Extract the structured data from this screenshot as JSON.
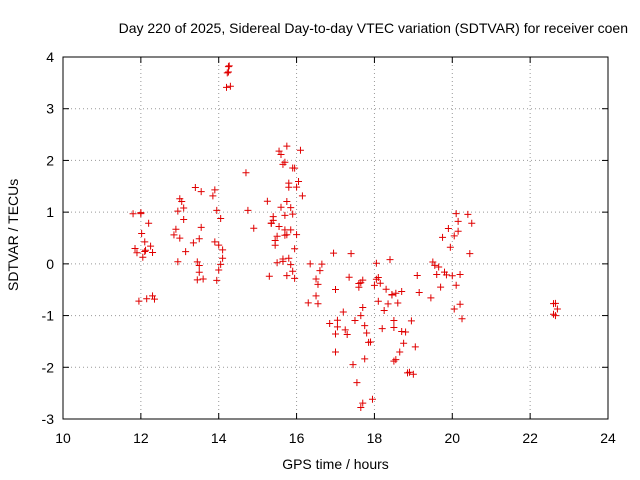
{
  "chart_data": {
    "type": "scatter",
    "title": "Day 220 of 2025, Sidereal Day-to-day VTEC variation (SDTVAR) for receiver coen",
    "xlabel": "GPS time / hours",
    "ylabel": "SDTVAR / TECUs",
    "xlim": [
      10,
      24
    ],
    "ylim": [
      -3,
      4
    ],
    "xticks": [
      10,
      12,
      14,
      16,
      18,
      20,
      22,
      24
    ],
    "yticks": [
      -3,
      -2,
      -1,
      0,
      1,
      2,
      3,
      4
    ],
    "grid": true,
    "marker": "plus",
    "color": "#e00000",
    "series": [
      {
        "name": "SDTVAR",
        "x": [
          11.8,
          11.85,
          11.9,
          11.95,
          12.0,
          12.0,
          12.02,
          12.05,
          12.1,
          12.1,
          12.12,
          12.15,
          12.2,
          12.25,
          12.3,
          12.3,
          12.35,
          12.85,
          12.9,
          12.95,
          13.0,
          13.05,
          13.1,
          13.1,
          13.15,
          12.95,
          13.0,
          13.35,
          13.4,
          13.45,
          13.5,
          13.55,
          13.5,
          13.55,
          13.6,
          13.45,
          13.5,
          13.85,
          13.9,
          13.95,
          14.0,
          14.05,
          13.9,
          13.95,
          14.0,
          14.05,
          14.1,
          14.1,
          14.2,
          14.22,
          14.25,
          14.27,
          14.3,
          14.25,
          14.7,
          14.75,
          14.9,
          15.25,
          15.3,
          15.35,
          15.4,
          15.45,
          15.5,
          15.55,
          15.6,
          15.35,
          15.4,
          15.45,
          15.5,
          15.55,
          15.6,
          15.65,
          15.65,
          15.7,
          15.75,
          15.8,
          15.85,
          15.9,
          15.95,
          16.0,
          15.7,
          15.75,
          15.8,
          15.85,
          15.9,
          15.95,
          15.7,
          15.75,
          15.8,
          15.85,
          15.9,
          15.95,
          16.0,
          16.05,
          16.1,
          16.15,
          15.65,
          15.7,
          15.75,
          16.3,
          16.35,
          16.5,
          16.55,
          16.6,
          16.65,
          16.5,
          16.55,
          16.85,
          16.95,
          17.0,
          17.05,
          17.0,
          17.05,
          17.0,
          17.2,
          17.25,
          17.3,
          17.35,
          17.4,
          17.45,
          17.5,
          17.55,
          17.6,
          17.65,
          17.7,
          17.75,
          17.6,
          17.65,
          17.7,
          17.75,
          17.8,
          17.85,
          17.9,
          17.95,
          17.65,
          17.7,
          18.0,
          18.05,
          18.1,
          18.15,
          18.2,
          18.25,
          18.3,
          18.35,
          18.4,
          18.45,
          18.5,
          18.05,
          18.1,
          18.45,
          18.5,
          18.55,
          18.6,
          18.65,
          18.7,
          18.75,
          18.8,
          18.85,
          18.9,
          18.95,
          19.0,
          19.05,
          19.1,
          19.15,
          18.5,
          18.55,
          18.7,
          19.45,
          19.5,
          19.55,
          19.6,
          19.65,
          19.7,
          19.75,
          19.8,
          19.85,
          19.9,
          19.95,
          20.0,
          20.05,
          20.1,
          20.15,
          20.05,
          20.1,
          20.15,
          20.2,
          20.2,
          20.25,
          20.4,
          20.45,
          20.5,
          22.6,
          22.65,
          22.7,
          22.65,
          22.6
        ]
      }
    ]
  }
}
